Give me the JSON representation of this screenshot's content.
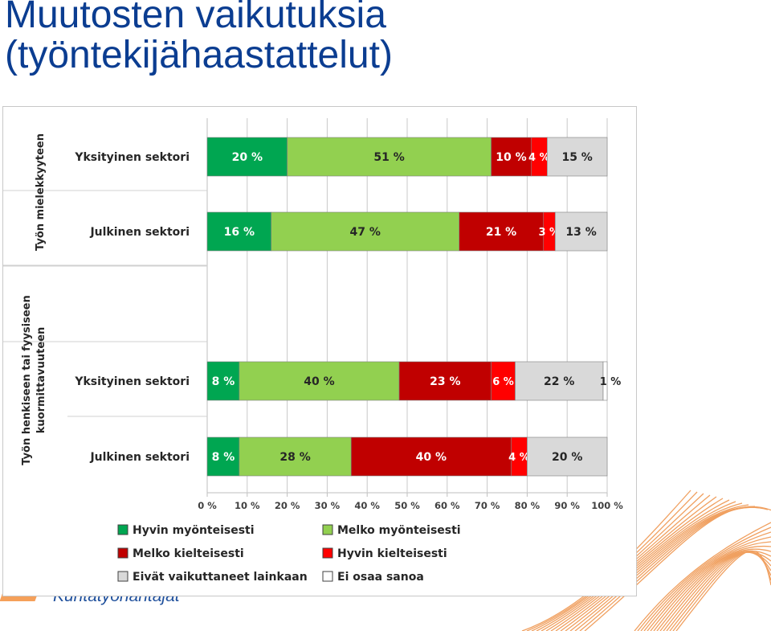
{
  "slide": {
    "title_line1": "Muutosten vaikutuksia",
    "title_line2": "(työntekijähaastattelut)",
    "footer_logo_text": "Kuntatyönantajat"
  },
  "colors": {
    "title": "#0b3d91",
    "decor_lines": "#f0a060"
  },
  "chart_data": {
    "type": "bar",
    "orientation": "horizontal",
    "stacked": true,
    "percent_axis": true,
    "xlim": [
      0,
      100
    ],
    "x_ticks": [
      "0 %",
      "10 %",
      "20 %",
      "30 %",
      "40 %",
      "50 %",
      "60 %",
      "70 %",
      "80 %",
      "90 %",
      "100 %"
    ],
    "grid": "vertical",
    "legend_position": "bottom",
    "groups": [
      {
        "label": "Työn mielekkyyteen",
        "categories": [
          "Yksityinen sektori",
          "Julkinen sektori"
        ]
      },
      {
        "label": "Työn henkiseen tai fyysiseen kuormittavuuteen",
        "categories": [
          "Yksityinen sektori",
          "Julkinen sektori"
        ]
      }
    ],
    "rows": [
      {
        "category": "Yksityinen sektori",
        "group": "Työn mielekkyyteen",
        "values": [
          20,
          51,
          10,
          4,
          15,
          0
        ],
        "labels": [
          "20 %",
          "51 %",
          "10 %",
          "4 %",
          "15 %",
          ""
        ]
      },
      {
        "category": "Julkinen sektori",
        "group": "Työn mielekkyyteen",
        "values": [
          16,
          47,
          21,
          3,
          13,
          0
        ],
        "labels": [
          "16 %",
          "47 %",
          "21 %",
          "3 %",
          "13 %",
          ""
        ]
      },
      {
        "category": "Yksityinen sektori",
        "group": "Työn henkiseen tai fyysiseen kuormittavuuteen",
        "values": [
          8,
          40,
          23,
          6,
          22,
          1
        ],
        "labels": [
          "8 %",
          "40 %",
          "23 %",
          "6 %",
          "22 %",
          "1 %"
        ]
      },
      {
        "category": "Julkinen sektori",
        "group": "Työn henkiseen tai fyysiseen kuormittavuuteen",
        "values": [
          8,
          28,
          40,
          4,
          20,
          0
        ],
        "labels": [
          "8 %",
          "28 %",
          "40 %",
          "4 %",
          "20 %",
          ""
        ]
      }
    ],
    "series": [
      {
        "name": "Hyvin myönteisesti",
        "color": "#00a651"
      },
      {
        "name": "Melko myönteisesti",
        "color": "#92d050"
      },
      {
        "name": "Melko kielteisesti",
        "color": "#c00000"
      },
      {
        "name": "Hyvin kielteisesti",
        "color": "#ff0000"
      },
      {
        "name": "Eivät vaikuttaneet lainkaan",
        "color": "#d9d9d9"
      },
      {
        "name": "Ei osaa sanoa",
        "color": "#ffffff"
      }
    ]
  }
}
